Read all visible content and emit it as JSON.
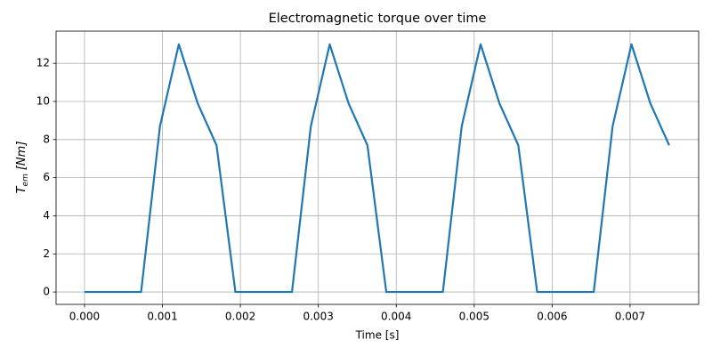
{
  "chart_data": {
    "type": "line",
    "title": "Electromagnetic torque over time",
    "xlabel": "Time [s]",
    "ylabel": {
      "symbol": "T",
      "subscript": "em",
      "unit": "[Nm]"
    },
    "x": [
      0,
      0.000242,
      0.000484,
      0.000726,
      0.000968,
      0.00121,
      0.001452,
      0.001694,
      0.001936,
      0.002178,
      0.00242,
      0.002662,
      0.002904,
      0.003146,
      0.003388,
      0.00363,
      0.003872,
      0.004114,
      0.004356,
      0.004598,
      0.00484,
      0.005082,
      0.005324,
      0.005566,
      0.005808,
      0.00605,
      0.006292,
      0.006534,
      0.006776,
      0.007018,
      0.00726,
      0.007502
    ],
    "series": [
      {
        "color": "#1f77b4",
        "values": [
          0,
          0,
          0,
          0,
          8.7,
          13,
          9.9,
          7.7,
          0,
          0,
          0,
          0,
          8.7,
          13,
          9.9,
          7.7,
          0,
          0,
          0,
          0,
          8.7,
          13,
          9.9,
          7.7,
          0,
          0,
          0,
          0,
          8.7,
          13,
          9.9,
          7.7
        ]
      }
    ],
    "xlim": [
      -0.000365,
      0.00788
    ],
    "xticks": [
      {
        "value": 0,
        "label": "0.000"
      },
      {
        "value": 0.001,
        "label": "0.001"
      },
      {
        "value": 0.002,
        "label": "0.002"
      },
      {
        "value": 0.003,
        "label": "0.003"
      },
      {
        "value": 0.004,
        "label": "0.004"
      },
      {
        "value": 0.005,
        "label": "0.005"
      },
      {
        "value": 0.006,
        "label": "0.006"
      },
      {
        "value": 0.007,
        "label": "0.007"
      }
    ],
    "ylim": [
      -0.65,
      13.69
    ],
    "yticks": [
      0,
      2,
      4,
      6,
      8,
      10,
      12
    ],
    "grid": true
  }
}
